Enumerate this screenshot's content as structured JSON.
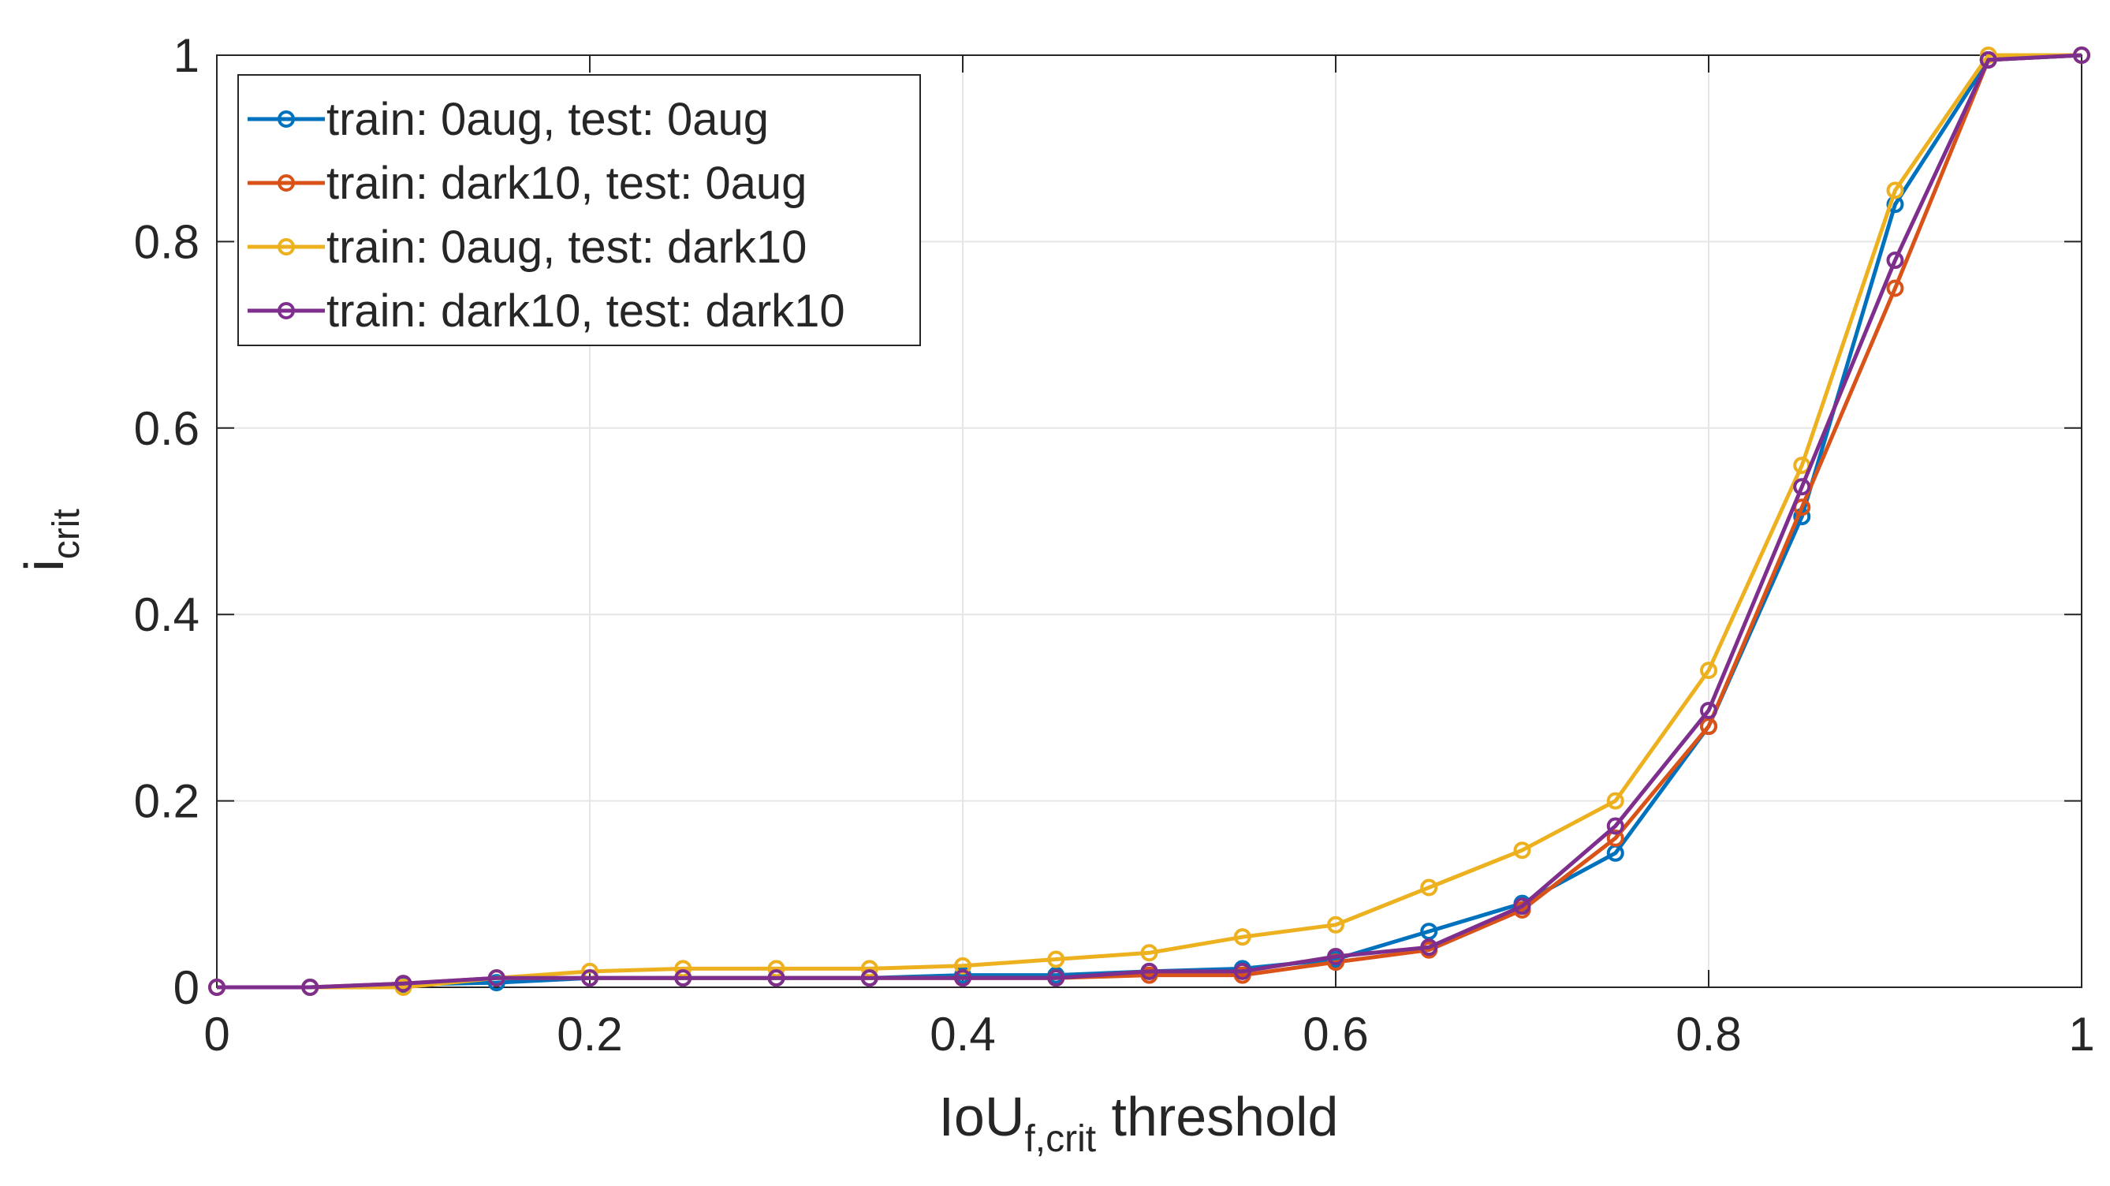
{
  "chart_data": {
    "type": "line",
    "title": "",
    "xlabel": {
      "main": "IoU",
      "subscript": "f,crit",
      "suffix": " threshold"
    },
    "ylabel": {
      "main": "i",
      "subscript": "crit"
    },
    "xlim": [
      0,
      1
    ],
    "ylim": [
      0,
      1
    ],
    "grid": true,
    "legend_position": "top-left",
    "x_ticks": [
      "0",
      "0.2",
      "0.4",
      "0.6",
      "0.8",
      "1"
    ],
    "x_tick_values": [
      0,
      0.2,
      0.4,
      0.6,
      0.8,
      1
    ],
    "y_ticks": [
      "0",
      "0.2",
      "0.4",
      "0.6",
      "0.8",
      "1"
    ],
    "y_tick_values": [
      0,
      0.2,
      0.4,
      0.6,
      0.8,
      1
    ],
    "x": [
      0,
      0.05,
      0.1,
      0.15,
      0.2,
      0.25,
      0.3,
      0.35,
      0.4,
      0.45,
      0.5,
      0.55,
      0.6,
      0.65,
      0.7,
      0.75,
      0.8,
      0.85,
      0.9,
      0.95,
      1
    ],
    "series": [
      {
        "name": "train: 0aug, test: 0aug",
        "color": "#0072BD",
        "values": [
          0,
          0,
          0.003,
          0.005,
          0.01,
          0.01,
          0.01,
          0.01,
          0.013,
          0.013,
          0.017,
          0.02,
          0.03,
          0.06,
          0.09,
          0.144,
          0.28,
          0.505,
          0.84,
          0.995,
          1
        ]
      },
      {
        "name": "train: dark10, test: 0aug",
        "color": "#D95319",
        "values": [
          0,
          0,
          0.004,
          0.01,
          0.01,
          0.01,
          0.01,
          0.01,
          0.01,
          0.01,
          0.013,
          0.013,
          0.027,
          0.04,
          0.083,
          0.16,
          0.28,
          0.515,
          0.75,
          0.995,
          1
        ]
      },
      {
        "name": "train: 0aug, test: dark10",
        "color": "#EDB120",
        "values": [
          0,
          0,
          0,
          0.01,
          0.017,
          0.02,
          0.02,
          0.02,
          0.023,
          0.03,
          0.037,
          0.054,
          0.067,
          0.107,
          0.147,
          0.2,
          0.34,
          0.56,
          0.855,
          1,
          1
        ]
      },
      {
        "name": "train: dark10, test: dark10",
        "color": "#7E2F8E",
        "values": [
          0,
          0,
          0.004,
          0.01,
          0.01,
          0.01,
          0.01,
          0.01,
          0.01,
          0.01,
          0.017,
          0.017,
          0.033,
          0.043,
          0.087,
          0.173,
          0.297,
          0.537,
          0.78,
          0.995,
          1
        ]
      }
    ]
  }
}
